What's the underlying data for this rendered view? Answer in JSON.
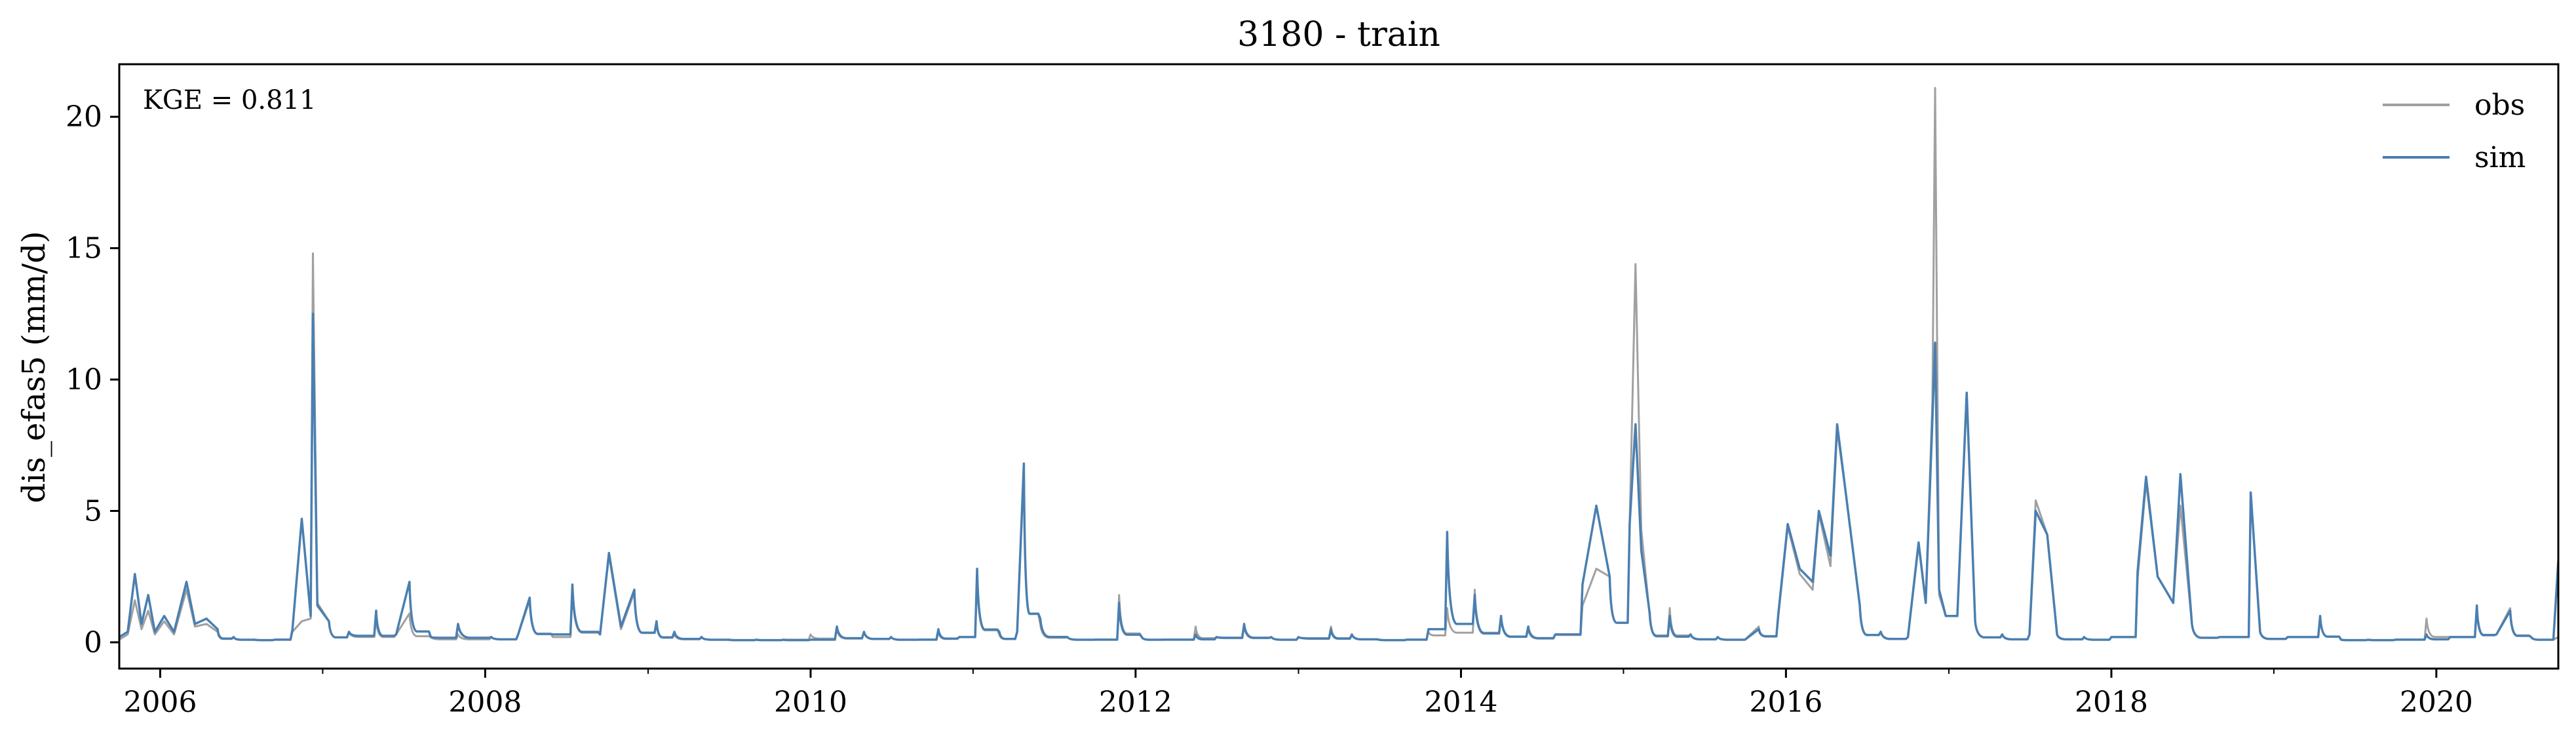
{
  "chart_data": {
    "type": "line",
    "title": "3180 - train",
    "xlabel": "",
    "ylabel": "dis_efas5 (mm/d)",
    "annotation": "KGE = 0.811",
    "x_range": [
      "2005-10-01",
      "2020-10-01"
    ],
    "ylim": [
      -1,
      22
    ],
    "x_ticks": [
      "2006",
      "2008",
      "2010",
      "2012",
      "2014",
      "2016",
      "2018",
      "2020"
    ],
    "y_ticks": [
      "0",
      "5",
      "10",
      "15",
      "20"
    ],
    "y_tick_values": [
      0,
      5,
      10,
      15,
      20
    ],
    "grid": false,
    "legend_position": "top-right",
    "colors": {
      "obs": "#a0a0a0",
      "sim": "#4a7fb0"
    },
    "series": [
      {
        "name": "obs",
        "x": [
          "2005-10-01",
          "2005-10-20",
          "2005-11-05",
          "2005-11-20",
          "2005-12-05",
          "2005-12-20",
          "2006-01-10",
          "2006-02-01",
          "2006-03-01",
          "2006-03-20",
          "2006-04-15",
          "2006-05-10",
          "2006-06-15",
          "2006-08-01",
          "2006-09-15",
          "2006-10-25",
          "2006-11-15",
          "2006-12-05",
          "2006-12-10",
          "2006-12-20",
          "2007-01-15",
          "2007-03-01",
          "2007-05-01",
          "2007-06-15",
          "2007-07-15",
          "2007-09-01",
          "2007-11-01",
          "2008-01-15",
          "2008-03-15",
          "2008-04-10",
          "2008-06-01",
          "2008-07-15",
          "2008-09-15",
          "2008-10-05",
          "2008-11-01",
          "2008-12-01",
          "2009-01-20",
          "2009-03-01",
          "2009-05-01",
          "2009-07-01",
          "2009-09-01",
          "2009-11-01",
          "2010-01-01",
          "2010-03-01",
          "2010-05-01",
          "2010-07-01",
          "2010-09-01",
          "2010-10-15",
          "2010-12-01",
          "2011-01-10",
          "2011-03-01",
          "2011-04-10",
          "2011-04-25",
          "2011-06-01",
          "2011-08-01",
          "2011-10-01",
          "2011-11-25",
          "2012-01-15",
          "2012-03-01",
          "2012-05-15",
          "2012-07-01",
          "2012-09-01",
          "2012-11-01",
          "2013-01-01",
          "2013-03-15",
          "2013-05-01",
          "2013-07-01",
          "2013-09-01",
          "2013-10-20",
          "2013-12-01",
          "2014-02-01",
          "2014-04-01",
          "2014-06-01",
          "2014-08-01",
          "2014-10-01",
          "2014-11-01",
          "2014-12-01",
          "2015-01-15",
          "2015-01-28",
          "2015-02-10",
          "2015-03-01",
          "2015-04-15",
          "2015-06-01",
          "2015-08-01",
          "2015-10-01",
          "2015-11-01",
          "2015-12-15",
          "2016-01-05",
          "2016-02-01",
          "2016-03-01",
          "2016-03-15",
          "2016-04-10",
          "2016-04-25",
          "2016-05-15",
          "2016-06-15",
          "2016-08-01",
          "2016-10-01",
          "2016-10-25",
          "2016-11-10",
          "2016-11-25",
          "2016-12-01",
          "2016-12-10",
          "2016-12-25",
          "2017-01-20",
          "2017-02-10",
          "2017-03-01",
          "2017-05-01",
          "2017-07-01",
          "2017-07-15",
          "2017-08-10",
          "2017-09-01",
          "2017-11-01",
          "2018-01-01",
          "2018-03-01",
          "2018-03-20",
          "2018-04-15",
          "2018-05-20",
          "2018-06-05",
          "2018-07-01",
          "2018-09-01",
          "2018-11-10",
          "2018-12-01",
          "2019-02-01",
          "2019-04-15",
          "2019-06-01",
          "2019-08-01",
          "2019-10-01",
          "2019-12-10",
          "2020-02-01",
          "2020-04-01",
          "2020-05-15",
          "2020-06-15",
          "2020-08-01",
          "2020-09-20",
          "2020-10-01"
        ],
        "y": [
          0.1,
          0.3,
          1.6,
          0.5,
          1.2,
          0.3,
          0.8,
          0.3,
          2.0,
          0.6,
          0.7,
          0.4,
          0.2,
          0.1,
          0.1,
          0.4,
          0.8,
          0.9,
          14.8,
          1.5,
          0.8,
          0.4,
          0.9,
          0.3,
          1.1,
          0.2,
          0.3,
          0.2,
          0.3,
          1.6,
          0.2,
          2.0,
          0.3,
          3.3,
          0.5,
          1.9,
          0.7,
          0.3,
          0.2,
          0.1,
          0.1,
          0.1,
          0.3,
          0.5,
          0.4,
          0.2,
          0.1,
          0.4,
          0.2,
          2.6,
          0.3,
          0.4,
          6.7,
          0.7,
          0.2,
          0.1,
          1.8,
          0.2,
          0.1,
          0.6,
          0.2,
          0.6,
          0.2,
          0.2,
          0.6,
          0.3,
          0.1,
          0.1,
          0.4,
          1.3,
          2.0,
          0.9,
          0.5,
          0.3,
          1.4,
          2.8,
          2.5,
          4.5,
          14.4,
          4.3,
          1.0,
          1.3,
          0.3,
          0.2,
          0.1,
          0.6,
          1.0,
          4.4,
          2.6,
          2.0,
          4.9,
          2.9,
          8.1,
          5.6,
          1.4,
          0.4,
          0.2,
          3.7,
          1.5,
          9.2,
          21.1,
          1.8,
          1.0,
          1.0,
          9.5,
          0.8,
          0.3,
          0.3,
          5.4,
          4.1,
          0.3,
          0.2,
          0.2,
          2.4,
          6.1,
          2.5,
          1.5,
          5.2,
          0.7,
          0.2,
          5.7,
          0.4,
          0.2,
          1.0,
          0.1,
          0.1,
          0.1,
          0.9,
          0.2,
          1.3,
          0.3,
          1.3,
          0.2,
          0.1,
          0.2
        ]
      },
      {
        "name": "sim",
        "x": [
          "2005-10-01",
          "2005-10-20",
          "2005-11-05",
          "2005-11-20",
          "2005-12-05",
          "2005-12-20",
          "2006-01-10",
          "2006-02-01",
          "2006-03-01",
          "2006-03-20",
          "2006-04-15",
          "2006-05-10",
          "2006-06-15",
          "2006-08-01",
          "2006-09-15",
          "2006-10-25",
          "2006-11-15",
          "2006-12-05",
          "2006-12-10",
          "2006-12-20",
          "2007-01-15",
          "2007-03-01",
          "2007-05-01",
          "2007-06-15",
          "2007-07-15",
          "2007-09-01",
          "2007-11-01",
          "2008-01-15",
          "2008-03-15",
          "2008-04-10",
          "2008-06-01",
          "2008-07-15",
          "2008-09-15",
          "2008-10-05",
          "2008-11-01",
          "2008-12-01",
          "2009-01-20",
          "2009-03-01",
          "2009-05-01",
          "2009-07-01",
          "2009-09-01",
          "2009-11-01",
          "2010-01-01",
          "2010-03-01",
          "2010-05-01",
          "2010-07-01",
          "2010-09-01",
          "2010-10-15",
          "2010-12-01",
          "2011-01-10",
          "2011-03-01",
          "2011-04-10",
          "2011-04-25",
          "2011-06-01",
          "2011-08-01",
          "2011-10-01",
          "2011-11-25",
          "2012-01-15",
          "2012-03-01",
          "2012-05-15",
          "2012-07-01",
          "2012-09-01",
          "2012-11-01",
          "2013-01-01",
          "2013-03-15",
          "2013-05-01",
          "2013-07-01",
          "2013-09-01",
          "2013-10-20",
          "2013-12-01",
          "2014-02-01",
          "2014-04-01",
          "2014-06-01",
          "2014-08-01",
          "2014-10-01",
          "2014-11-01",
          "2014-12-01",
          "2015-01-15",
          "2015-01-28",
          "2015-02-10",
          "2015-03-01",
          "2015-04-15",
          "2015-06-01",
          "2015-08-01",
          "2015-10-01",
          "2015-11-01",
          "2015-12-15",
          "2016-01-05",
          "2016-02-01",
          "2016-03-01",
          "2016-03-15",
          "2016-04-10",
          "2016-04-25",
          "2016-05-15",
          "2016-06-15",
          "2016-08-01",
          "2016-10-01",
          "2016-10-25",
          "2016-11-10",
          "2016-11-25",
          "2016-12-01",
          "2016-12-10",
          "2016-12-25",
          "2017-01-20",
          "2017-02-10",
          "2017-03-01",
          "2017-05-01",
          "2017-07-01",
          "2017-07-15",
          "2017-08-10",
          "2017-09-01",
          "2017-11-01",
          "2018-01-01",
          "2018-03-01",
          "2018-03-20",
          "2018-04-15",
          "2018-05-20",
          "2018-06-05",
          "2018-07-01",
          "2018-09-01",
          "2018-11-10",
          "2018-12-01",
          "2019-02-01",
          "2019-04-15",
          "2019-06-01",
          "2019-08-01",
          "2019-10-01",
          "2019-12-10",
          "2020-02-01",
          "2020-04-01",
          "2020-05-15",
          "2020-06-15",
          "2020-08-01",
          "2020-09-20",
          "2020-10-01"
        ],
        "y": [
          0.2,
          0.4,
          2.6,
          0.7,
          1.8,
          0.4,
          1.0,
          0.4,
          2.3,
          0.7,
          0.9,
          0.5,
          0.2,
          0.1,
          0.1,
          0.5,
          4.7,
          1.0,
          12.5,
          1.4,
          0.8,
          0.4,
          1.2,
          0.3,
          2.3,
          0.2,
          0.7,
          0.2,
          0.3,
          1.7,
          0.3,
          2.2,
          0.3,
          3.4,
          0.6,
          2.0,
          0.8,
          0.4,
          0.2,
          0.1,
          0.1,
          0.1,
          0.1,
          0.6,
          0.4,
          0.2,
          0.1,
          0.5,
          0.2,
          2.8,
          0.4,
          0.4,
          6.8,
          0.9,
          0.2,
          0.1,
          1.5,
          0.2,
          0.1,
          0.3,
          0.2,
          0.7,
          0.2,
          0.2,
          0.5,
          0.3,
          0.1,
          0.1,
          0.5,
          4.2,
          1.8,
          1.0,
          0.6,
          0.3,
          2.2,
          5.2,
          2.5,
          4.5,
          8.3,
          3.5,
          1.1,
          1.0,
          0.3,
          0.2,
          0.1,
          0.5,
          1.1,
          4.5,
          2.8,
          2.3,
          5.0,
          3.3,
          8.3,
          5.6,
          1.4,
          0.4,
          0.2,
          3.8,
          1.5,
          8.5,
          11.4,
          2.0,
          1.0,
          1.0,
          9.5,
          0.8,
          0.3,
          0.3,
          5.0,
          4.1,
          0.3,
          0.2,
          0.2,
          2.7,
          6.3,
          2.5,
          1.5,
          6.4,
          0.7,
          0.2,
          5.7,
          0.4,
          0.2,
          1.0,
          0.1,
          0.1,
          0.1,
          0.3,
          0.2,
          1.4,
          0.3,
          1.2,
          0.2,
          0.1,
          3.1
        ]
      }
    ]
  }
}
